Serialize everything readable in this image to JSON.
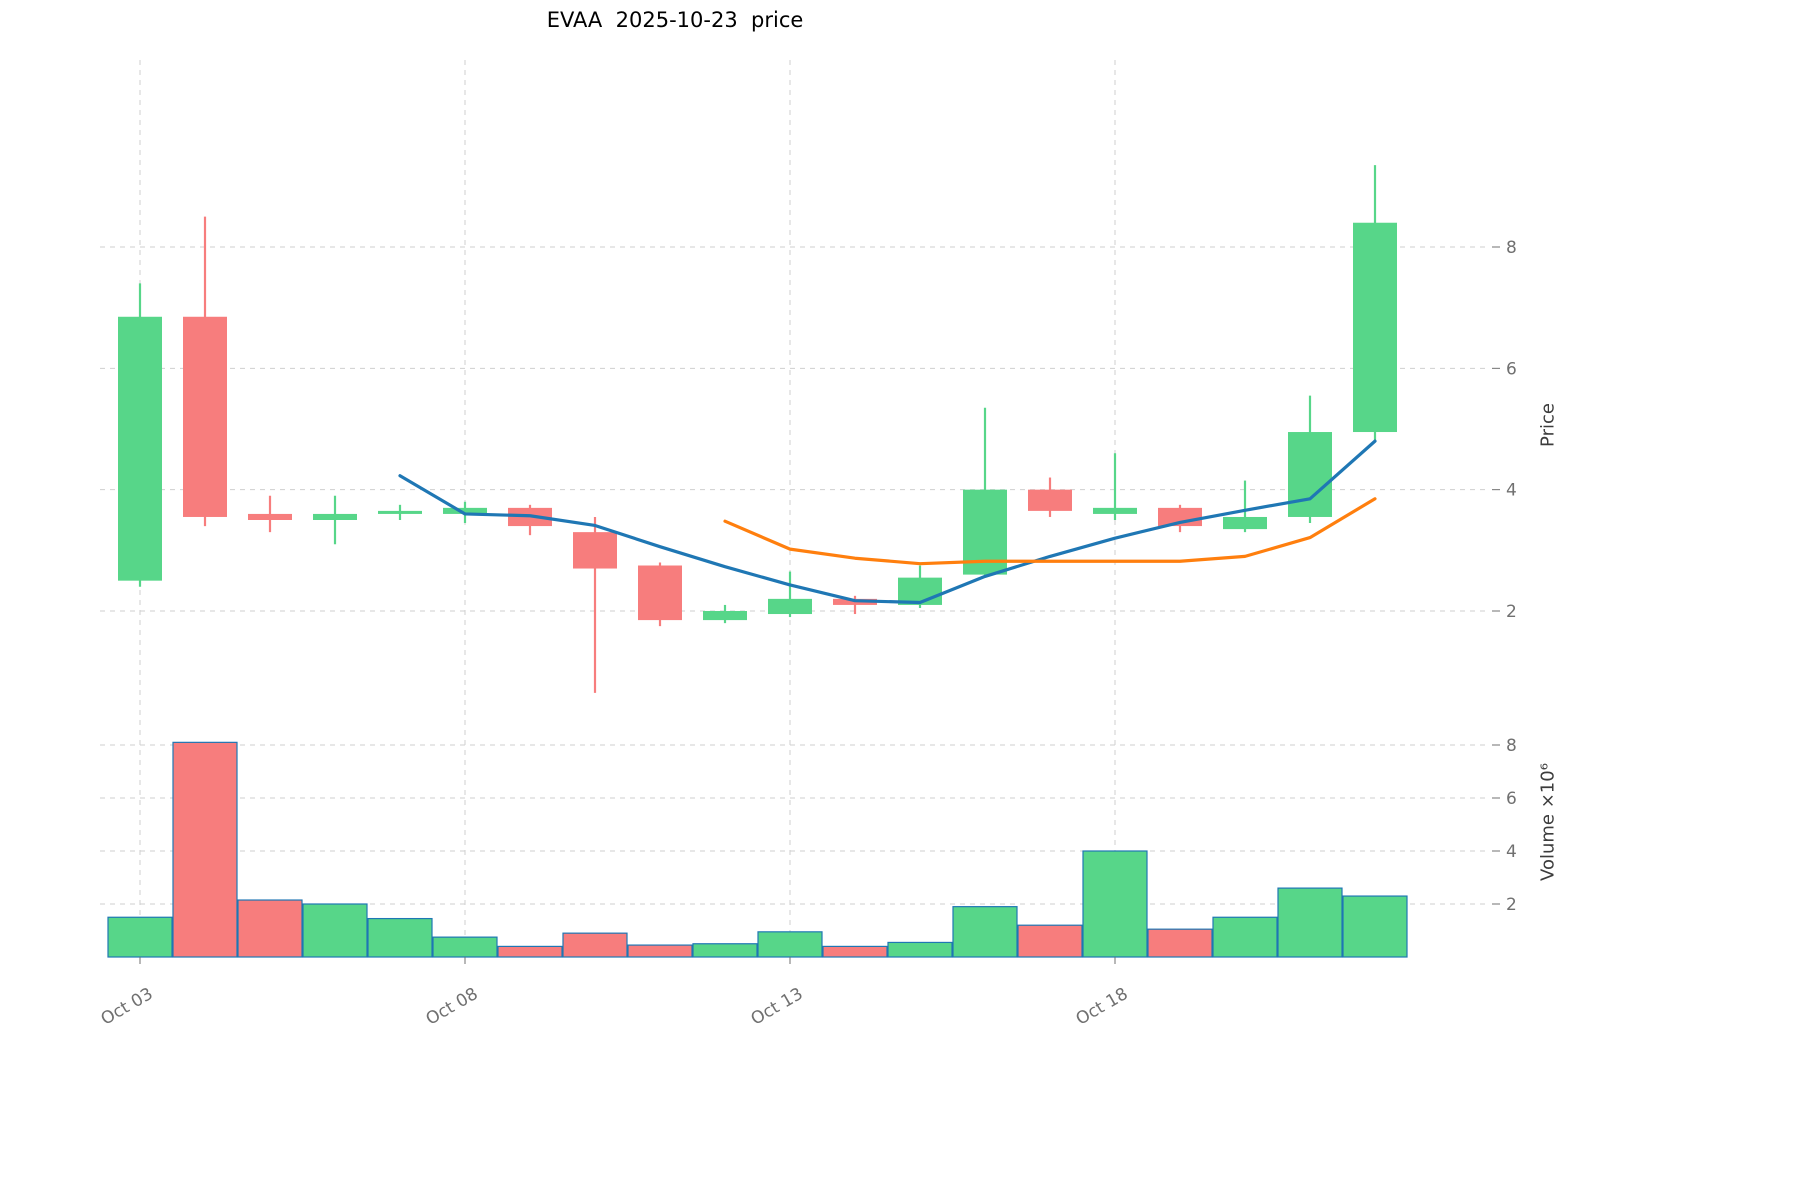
{
  "colors": {
    "up": "#57d689",
    "down": "#f77d7d",
    "sma_fast": "#1f77b4",
    "sma_slow": "#ff7f0e",
    "grid": "#cfcfcf",
    "tick_text": "#707070",
    "volume_edge": "#1f77b4",
    "title_text": "#000000"
  },
  "chart_data": {
    "type": "candlestick",
    "title": "EVAA  2025-10-23  price",
    "ylabel_price": "Price",
    "ylabel_volume": "Volume ×10⁶",
    "grid": true,
    "legend_position": "none",
    "price_ylim": [
      0.45,
      11.1
    ],
    "volume_ylim_millions": [
      0,
      8.6
    ],
    "price_axis_ticks": [
      2,
      4,
      6,
      8
    ],
    "volume_axis_ticks_millions": [
      2,
      4,
      6,
      8
    ],
    "x_ticks": [
      {
        "index": 0,
        "label": "Oct 03"
      },
      {
        "index": 5,
        "label": "Oct 08"
      },
      {
        "index": 10,
        "label": "Oct 13"
      },
      {
        "index": 15,
        "label": "Oct 18"
      }
    ],
    "candles": [
      {
        "date": "2025-10-03",
        "open": 2.5,
        "high": 7.4,
        "low": 2.4,
        "close": 6.85,
        "volume_millions": 1.5
      },
      {
        "date": "2025-10-04",
        "open": 6.85,
        "high": 8.5,
        "low": 3.4,
        "close": 3.55,
        "volume_millions": 8.1
      },
      {
        "date": "2025-10-05",
        "open": 3.6,
        "high": 3.9,
        "low": 3.3,
        "close": 3.5,
        "volume_millions": 2.15
      },
      {
        "date": "2025-10-06",
        "open": 3.5,
        "high": 3.9,
        "low": 3.1,
        "close": 3.6,
        "volume_millions": 2.0
      },
      {
        "date": "2025-10-07",
        "open": 3.6,
        "high": 3.75,
        "low": 3.5,
        "close": 3.65,
        "volume_millions": 1.45
      },
      {
        "date": "2025-10-08",
        "open": 3.6,
        "high": 3.8,
        "low": 3.45,
        "close": 3.7,
        "volume_millions": 0.75
      },
      {
        "date": "2025-10-09",
        "open": 3.7,
        "high": 3.75,
        "low": 3.25,
        "close": 3.4,
        "volume_millions": 0.4
      },
      {
        "date": "2025-10-10",
        "open": 3.3,
        "high": 3.55,
        "low": 0.65,
        "close": 2.7,
        "volume_millions": 0.9
      },
      {
        "date": "2025-10-11",
        "open": 2.75,
        "high": 2.8,
        "low": 1.75,
        "close": 1.85,
        "volume_millions": 0.45
      },
      {
        "date": "2025-10-12",
        "open": 1.85,
        "high": 2.1,
        "low": 1.8,
        "close": 2.0,
        "volume_millions": 0.5
      },
      {
        "date": "2025-10-13",
        "open": 1.95,
        "high": 2.65,
        "low": 1.9,
        "close": 2.2,
        "volume_millions": 0.95
      },
      {
        "date": "2025-10-14",
        "open": 2.2,
        "high": 2.25,
        "low": 1.95,
        "close": 2.1,
        "volume_millions": 0.4
      },
      {
        "date": "2025-10-15",
        "open": 2.1,
        "high": 2.75,
        "low": 2.05,
        "close": 2.55,
        "volume_millions": 0.55
      },
      {
        "date": "2025-10-16",
        "open": 2.6,
        "high": 5.35,
        "low": 2.55,
        "close": 4.0,
        "volume_millions": 1.9
      },
      {
        "date": "2025-10-17",
        "open": 4.0,
        "high": 4.2,
        "low": 3.55,
        "close": 3.65,
        "volume_millions": 1.2
      },
      {
        "date": "2025-10-18",
        "open": 3.6,
        "high": 4.6,
        "low": 3.5,
        "close": 3.7,
        "volume_millions": 4.0
      },
      {
        "date": "2025-10-19",
        "open": 3.7,
        "high": 3.75,
        "low": 3.3,
        "close": 3.4,
        "volume_millions": 1.05
      },
      {
        "date": "2025-10-20",
        "open": 3.35,
        "high": 4.15,
        "low": 3.3,
        "close": 3.55,
        "volume_millions": 1.5
      },
      {
        "date": "2025-10-21",
        "open": 3.55,
        "high": 5.55,
        "low": 3.45,
        "close": 4.95,
        "volume_millions": 2.6
      },
      {
        "date": "2025-10-22",
        "open": 4.95,
        "high": 9.35,
        "low": 4.8,
        "close": 8.4,
        "volume_millions": 2.3
      }
    ],
    "overlays": [
      {
        "name": "SMA5",
        "color": "#1f77b4",
        "values": [
          null,
          null,
          null,
          null,
          4.23,
          3.6,
          3.57,
          3.41,
          3.06,
          2.73,
          2.43,
          2.17,
          2.14,
          2.57,
          2.9,
          3.2,
          3.46,
          3.66,
          3.85,
          4.8
        ]
      },
      {
        "name": "SMA10",
        "color": "#ff7f0e",
        "values": [
          null,
          null,
          null,
          null,
          null,
          null,
          null,
          null,
          null,
          3.48,
          3.02,
          2.87,
          2.78,
          2.82,
          2.82,
          2.82,
          2.82,
          2.9,
          3.21,
          3.85
        ]
      }
    ]
  }
}
